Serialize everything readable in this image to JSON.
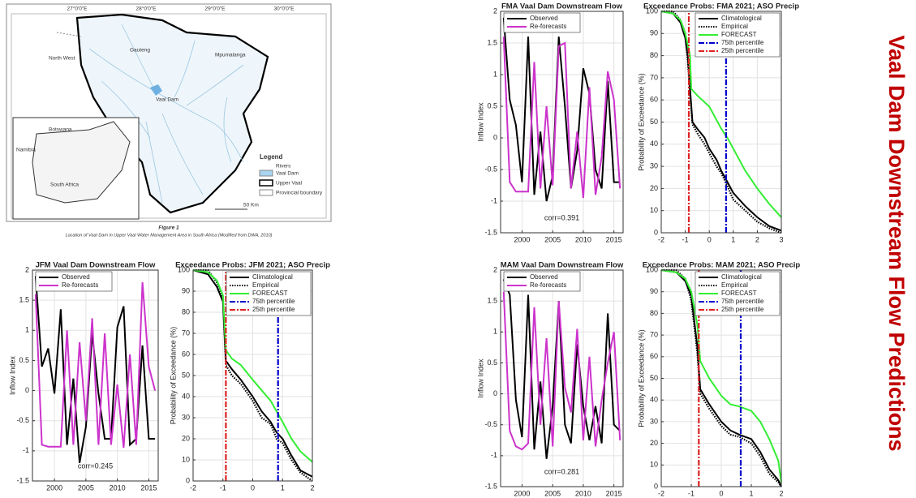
{
  "title": "Vaal Dam Downstream Flow Predictions",
  "map": {
    "lon_labels": [
      "27°0'0\"E",
      "28°0'0\"E",
      "29°0'0\"E",
      "30°0'0\"E"
    ],
    "regions": [
      "North West",
      "Gauteng",
      "Mpumalanga",
      "Vaal Dam"
    ],
    "inset_labels": [
      "Botswana",
      "Namibia",
      "South Africa"
    ],
    "legend": {
      "title": "Legend",
      "items": [
        "Rivers",
        "Vaal Dam",
        "Upper Vaal",
        "Provincial boundary"
      ]
    },
    "scale": "50 Km",
    "caption_title": "Figure 1",
    "caption": "Location of Vaal Dam in Upper Vaal Water Management Area in South Africa (Modified from DWA, 2010)"
  },
  "chart_data": [
    {
      "type": "line",
      "title": "FMA Vaal Dam Downstream Flow",
      "ylabel": "Inflow Index",
      "annotation": "corr=0.391",
      "x": [
        1997,
        1998,
        1999,
        2000,
        2001,
        2002,
        2003,
        2004,
        2005,
        2006,
        2007,
        2008,
        2009,
        2010,
        2011,
        2012,
        2013,
        2014,
        2015,
        2016
      ],
      "xlim": [
        1996.5,
        2016.5
      ],
      "xticks": [
        2000,
        2005,
        2010,
        2015
      ],
      "ylim": [
        -1.5,
        2
      ],
      "yticks": [
        -1.5,
        -1,
        -0.5,
        0,
        0.5,
        1,
        1.5,
        2
      ],
      "grid": true,
      "legend": "upper left",
      "series": [
        {
          "name": "Observed",
          "color": "#000000",
          "style": "solid",
          "values": [
            1.9,
            0.6,
            0.2,
            -0.7,
            1.6,
            -0.9,
            0.1,
            -1.0,
            -0.6,
            1.6,
            0.5,
            -0.8,
            -0.2,
            1.1,
            0.7,
            -0.5,
            -0.8,
            0.9,
            -0.7,
            -0.7
          ]
        },
        {
          "name": "Re-forecasts",
          "color": "#cc33cc",
          "style": "solid",
          "values": [
            1.6,
            -0.7,
            -0.85,
            -0.85,
            -0.85,
            1.2,
            -0.8,
            0.5,
            -0.75,
            1.45,
            1.5,
            -0.8,
            0.1,
            -0.95,
            0.8,
            -0.9,
            -0.3,
            1.05,
            0.6,
            -0.8
          ]
        }
      ]
    },
    {
      "type": "line",
      "title": "Exceedance Probs: FMA 2021; ASO Precip",
      "ylabel": "Probability of Exceedance (%)",
      "xlim": [
        -2,
        3
      ],
      "xticks": [
        -2,
        -1,
        0,
        1,
        2,
        3
      ],
      "ylim": [
        0,
        100
      ],
      "yticks": [
        0,
        10,
        20,
        30,
        40,
        50,
        60,
        70,
        80,
        90,
        100
      ],
      "grid": true,
      "legend": "upper right",
      "series": [
        {
          "name": "Climatological",
          "color": "#000000",
          "style": "solid",
          "x": [
            -2,
            -1.5,
            -1.2,
            -1,
            -0.9,
            -0.8,
            -0.7,
            -0.5,
            -0.2,
            0,
            0.3,
            0.5,
            0.8,
            1,
            1.5,
            2,
            2.5,
            3
          ],
          "values": [
            100,
            99,
            95,
            88,
            80,
            65,
            50,
            47,
            43,
            38,
            33,
            28,
            22,
            18,
            12,
            7,
            3,
            1
          ]
        },
        {
          "name": "Empirical",
          "color": "#000000",
          "style": "dotted",
          "x": [
            -2,
            -1.5,
            -1.2,
            -1,
            -0.9,
            -0.8,
            -0.7,
            -0.5,
            -0.2,
            0,
            0.3,
            0.5,
            0.8,
            1,
            1.5,
            2,
            2.5,
            3
          ],
          "values": [
            100,
            100,
            96,
            90,
            78,
            63,
            49,
            45,
            40,
            36,
            30,
            27,
            20,
            15,
            10,
            5,
            2,
            0
          ]
        },
        {
          "name": "FORECAST",
          "color": "#33ee33",
          "style": "solid",
          "x": [
            -2,
            -1.5,
            -1.2,
            -1,
            -0.9,
            -0.8,
            -0.75,
            -0.5,
            0,
            0.5,
            0.8,
            1,
            1.5,
            2,
            2.5,
            3
          ],
          "values": [
            100,
            99,
            96,
            90,
            85,
            80,
            65,
            62,
            57,
            47,
            42,
            38,
            28,
            20,
            13,
            7
          ]
        },
        {
          "name": "75th percentile",
          "color": "#0000cc",
          "style": "dashdot",
          "x": [
            0.7,
            0.7
          ],
          "values": [
            0,
            100
          ]
        },
        {
          "name": "25th percentile",
          "color": "#dd2222",
          "style": "dashdot",
          "x": [
            -0.85,
            -0.85
          ],
          "values": [
            0,
            100
          ]
        }
      ]
    },
    {
      "type": "line",
      "title": "JFM Vaal Dam Downstream Flow",
      "ylabel": "Inflow Index",
      "annotation": "corr=0.245",
      "x": [
        1997,
        1998,
        1999,
        2000,
        2001,
        2002,
        2003,
        2004,
        2005,
        2006,
        2007,
        2008,
        2009,
        2010,
        2011,
        2012,
        2013,
        2014,
        2015,
        2016
      ],
      "xlim": [
        1996.5,
        2016.5
      ],
      "xticks": [
        2000,
        2005,
        2010,
        2015
      ],
      "ylim": [
        -1.5,
        2
      ],
      "yticks": [
        -1.5,
        -1,
        -0.5,
        0,
        0.5,
        1,
        1.5,
        2
      ],
      "grid": true,
      "legend": "upper left",
      "series": [
        {
          "name": "Observed",
          "color": "#000000",
          "style": "solid",
          "values": [
            1.9,
            0.4,
            0.7,
            -0.05,
            1.35,
            -0.9,
            0.2,
            -1.2,
            -0.6,
            0.95,
            -0.05,
            -0.8,
            -0.8,
            1.05,
            1.4,
            -0.9,
            -0.8,
            0.75,
            -0.8,
            -0.8
          ]
        },
        {
          "name": "Re-forecasts",
          "color": "#cc33cc",
          "style": "solid",
          "values": [
            1.6,
            -0.9,
            -0.93,
            -0.93,
            -0.93,
            1.0,
            -0.9,
            0.8,
            -0.5,
            1.2,
            -0.9,
            0.95,
            -0.9,
            0.1,
            -0.95,
            0.6,
            -0.9,
            1.8,
            0.4,
            0.0
          ]
        }
      ]
    },
    {
      "type": "line",
      "title": "Exceedance Probs: JFM 2021; ASO Precip",
      "ylabel": "Probability of Exceedance (%)",
      "xlim": [
        -2,
        2
      ],
      "xticks": [
        -2,
        -1,
        0,
        1,
        2
      ],
      "ylim": [
        0,
        100
      ],
      "yticks": [
        0,
        10,
        20,
        30,
        40,
        50,
        60,
        70,
        80,
        90,
        100
      ],
      "grid": true,
      "legend": "upper right",
      "series": [
        {
          "name": "Climatological",
          "color": "#000000",
          "style": "solid",
          "x": [
            -2,
            -1.5,
            -1.2,
            -1,
            -0.9,
            -0.7,
            -0.4,
            0,
            0.3,
            0.6,
            0.8,
            1.0,
            1.3,
            1.6,
            2
          ],
          "values": [
            100,
            98,
            92,
            85,
            57,
            53,
            48,
            40,
            33,
            28,
            23,
            20,
            12,
            5,
            2
          ]
        },
        {
          "name": "Empirical",
          "color": "#000000",
          "style": "dotted",
          "x": [
            -2,
            -1.5,
            -1.2,
            -1,
            -0.9,
            -0.7,
            -0.4,
            0,
            0.3,
            0.6,
            0.8,
            1.0,
            1.3,
            1.6,
            2
          ],
          "values": [
            100,
            100,
            94,
            86,
            55,
            50,
            46,
            38,
            30,
            27,
            20,
            18,
            10,
            4,
            0
          ]
        },
        {
          "name": "FORECAST",
          "color": "#33ee33",
          "style": "solid",
          "x": [
            -2,
            -1.5,
            -1.2,
            -1,
            -0.9,
            -0.7,
            -0.4,
            0,
            0.3,
            0.6,
            0.8,
            1.0,
            1.3,
            1.6,
            2
          ],
          "values": [
            100,
            99,
            95,
            88,
            62,
            58,
            55,
            48,
            43,
            38,
            33,
            28,
            20,
            14,
            9
          ]
        },
        {
          "name": "75th percentile",
          "color": "#0000cc",
          "style": "dashdot",
          "x": [
            0.85,
            0.85
          ],
          "values": [
            0,
            100
          ]
        },
        {
          "name": "25th percentile",
          "color": "#dd2222",
          "style": "dashdot",
          "x": [
            -0.9,
            -0.9
          ],
          "values": [
            0,
            100
          ]
        }
      ]
    },
    {
      "type": "line",
      "title": "MAM Vaal Dam Downstream Flow",
      "ylabel": "Inflow Index",
      "annotation": "corr=0.281",
      "x": [
        1997,
        1998,
        1999,
        2000,
        2001,
        2002,
        2003,
        2004,
        2005,
        2006,
        2007,
        2008,
        2009,
        2010,
        2011,
        2012,
        2013,
        2014,
        2015,
        2016
      ],
      "xlim": [
        1996.5,
        2016.5
      ],
      "xticks": [
        2000,
        2005,
        2010,
        2015
      ],
      "ylim": [
        -1.5,
        2
      ],
      "yticks": [
        -1.5,
        -1,
        -0.5,
        0,
        0.5,
        1,
        1.5,
        2
      ],
      "grid": true,
      "legend": "upper left",
      "series": [
        {
          "name": "Observed",
          "color": "#000000",
          "style": "solid",
          "values": [
            1.85,
            1.6,
            -0.1,
            -0.7,
            1.6,
            -0.9,
            0.2,
            -1.05,
            -0.2,
            1.5,
            -0.5,
            -0.8,
            0.8,
            -0.2,
            -0.75,
            -0.2,
            -0.8,
            1.3,
            -0.5,
            -0.6
          ]
        },
        {
          "name": "Re-forecasts",
          "color": "#cc33cc",
          "style": "solid",
          "values": [
            1.65,
            -0.6,
            -0.85,
            -0.9,
            -0.8,
            1.4,
            -0.5,
            0.9,
            -0.85,
            1.5,
            0.1,
            -0.3,
            1.05,
            -0.75,
            0.6,
            -0.85,
            -0.1,
            0.5,
            1.0,
            -0.75
          ]
        }
      ]
    },
    {
      "type": "line",
      "title": "Exceedance Probs: MAM 2021; ASO Precip",
      "ylabel": "Probability of Exceedance (%)",
      "xlim": [
        -2,
        2
      ],
      "xticks": [
        -2,
        -1,
        0,
        1,
        2
      ],
      "ylim": [
        0,
        100
      ],
      "yticks": [
        0,
        10,
        20,
        30,
        40,
        50,
        60,
        70,
        80,
        90,
        100
      ],
      "grid": true,
      "legend": "upper right",
      "series": [
        {
          "name": "Climatological",
          "color": "#000000",
          "style": "solid",
          "x": [
            -2,
            -1.5,
            -1.2,
            -1,
            -0.8,
            -0.7,
            -0.4,
            0,
            0.3,
            0.6,
            1.0,
            1.3,
            1.6,
            1.9,
            2
          ],
          "values": [
            100,
            99,
            95,
            88,
            65,
            45,
            38,
            30,
            26,
            24,
            22,
            16,
            8,
            3,
            0
          ]
        },
        {
          "name": "Empirical",
          "color": "#000000",
          "style": "dotted",
          "x": [
            -2,
            -1.5,
            -1.2,
            -1,
            -0.8,
            -0.7,
            -0.4,
            0,
            0.3,
            0.6,
            1.0,
            1.3,
            1.6,
            1.9,
            2
          ],
          "values": [
            100,
            100,
            96,
            86,
            62,
            43,
            36,
            28,
            24,
            23,
            20,
            14,
            6,
            2,
            0
          ]
        },
        {
          "name": "FORECAST",
          "color": "#33ee33",
          "style": "solid",
          "x": [
            -2,
            -1.5,
            -1.2,
            -1,
            -0.8,
            -0.7,
            -0.4,
            0,
            0.3,
            0.6,
            1.0,
            1.3,
            1.6,
            1.9,
            2
          ],
          "values": [
            100,
            99,
            96,
            90,
            75,
            58,
            50,
            42,
            38,
            37,
            35,
            30,
            22,
            12,
            2
          ]
        },
        {
          "name": "75th percentile",
          "color": "#0000cc",
          "style": "dashdot",
          "x": [
            0.65,
            0.65
          ],
          "values": [
            0,
            100
          ]
        },
        {
          "name": "25th percentile",
          "color": "#dd2222",
          "style": "dashdot",
          "x": [
            -0.75,
            -0.75
          ],
          "values": [
            0,
            100
          ]
        }
      ]
    }
  ]
}
